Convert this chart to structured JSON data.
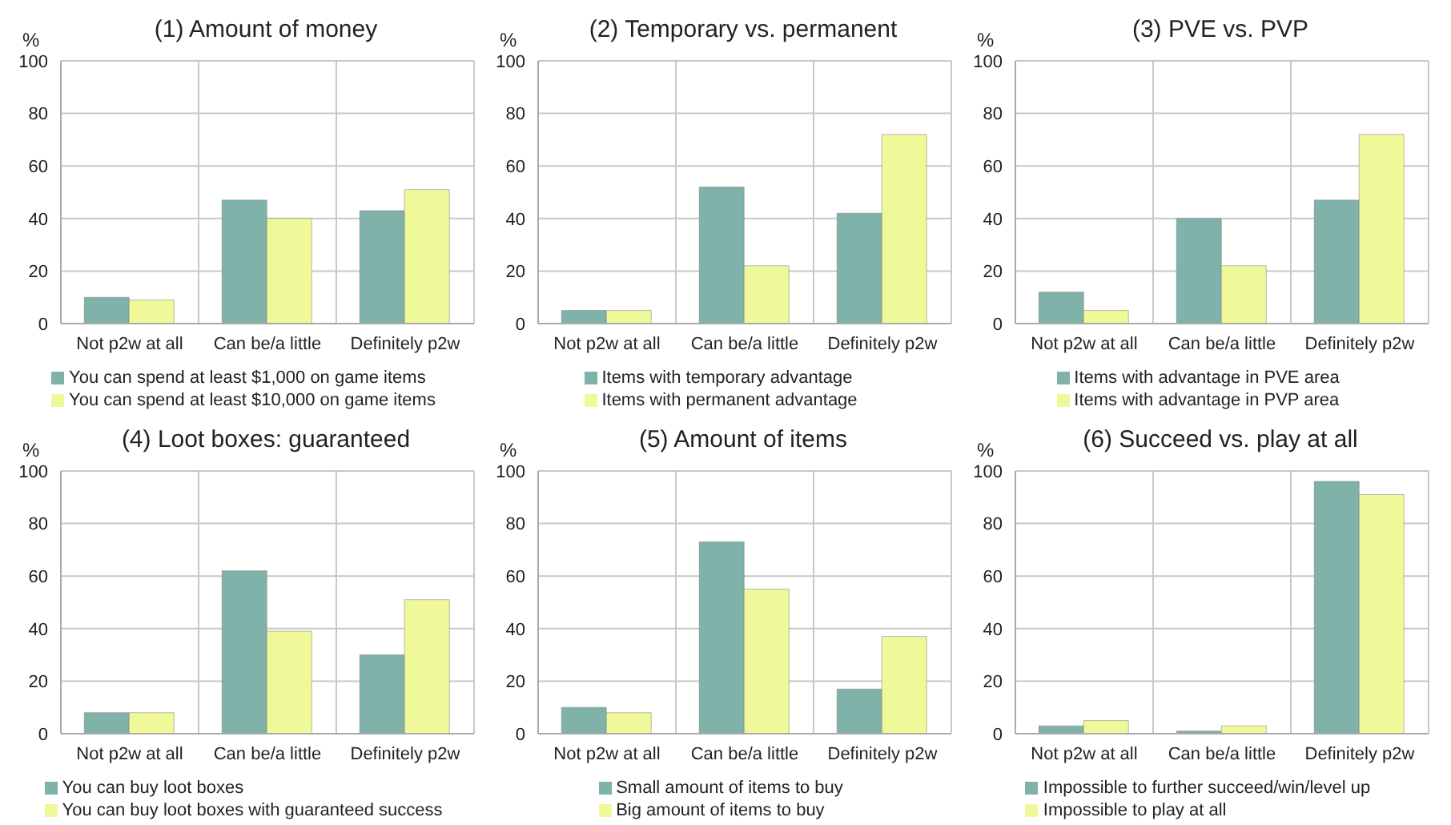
{
  "chart_data": [
    {
      "type": "bar",
      "title": "(1) Amount of money",
      "ylabel": "%",
      "categories": [
        "Not p2w at all",
        "Can be/a little",
        "Definitely p2w"
      ],
      "series": [
        {
          "name": "You can spend at least $1,000 on game items",
          "color": "#7fb2a8",
          "values": [
            10,
            47,
            43
          ]
        },
        {
          "name": "You can spend at least $10,000 on game items",
          "color": "#f0f99a",
          "values": [
            9,
            40,
            51
          ]
        }
      ],
      "ylim": [
        0,
        100
      ],
      "yticks": [
        0,
        20,
        40,
        60,
        80,
        100
      ],
      "grid": true,
      "legend": "bottom"
    },
    {
      "type": "bar",
      "title": "(2) Temporary vs. permanent",
      "ylabel": "%",
      "categories": [
        "Not p2w at all",
        "Can be/a little",
        "Definitely p2w"
      ],
      "series": [
        {
          "name": "Items with temporary advantage",
          "color": "#7fb2a8",
          "values": [
            5,
            52,
            42
          ]
        },
        {
          "name": "Items with permanent advantage",
          "color": "#f0f99a",
          "values": [
            5,
            22,
            72
          ]
        }
      ],
      "ylim": [
        0,
        100
      ],
      "yticks": [
        0,
        20,
        40,
        60,
        80,
        100
      ],
      "grid": true,
      "legend": "bottom"
    },
    {
      "type": "bar",
      "title": "(3) PVE vs. PVP",
      "ylabel": "%",
      "categories": [
        "Not p2w at all",
        "Can be/a little",
        "Definitely p2w"
      ],
      "series": [
        {
          "name": "Items with advantage in PVE area",
          "color": "#7fb2a8",
          "values": [
            12,
            40,
            47
          ]
        },
        {
          "name": "Items with advantage in PVP area",
          "color": "#f0f99a",
          "values": [
            5,
            22,
            72
          ]
        }
      ],
      "ylim": [
        0,
        100
      ],
      "yticks": [
        0,
        20,
        40,
        60,
        80,
        100
      ],
      "grid": true,
      "legend": "bottom"
    },
    {
      "type": "bar",
      "title": "(4) Loot boxes: guaranteed",
      "ylabel": "%",
      "categories": [
        "Not p2w at all",
        "Can be/a little",
        "Definitely p2w"
      ],
      "series": [
        {
          "name": "You can buy loot boxes",
          "color": "#7fb2a8",
          "values": [
            8,
            62,
            30
          ]
        },
        {
          "name": "You can buy loot boxes with guaranteed success",
          "color": "#f0f99a",
          "values": [
            8,
            39,
            51
          ]
        }
      ],
      "ylim": [
        0,
        100
      ],
      "yticks": [
        0,
        20,
        40,
        60,
        80,
        100
      ],
      "grid": true,
      "legend": "bottom"
    },
    {
      "type": "bar",
      "title": "(5) Amount of items",
      "ylabel": "%",
      "categories": [
        "Not p2w at all",
        "Can be/a little",
        "Definitely p2w"
      ],
      "series": [
        {
          "name": "Small amount of items to buy",
          "color": "#7fb2a8",
          "values": [
            10,
            73,
            17
          ]
        },
        {
          "name": "Big amount of items to buy",
          "color": "#f0f99a",
          "values": [
            8,
            55,
            37
          ]
        }
      ],
      "ylim": [
        0,
        100
      ],
      "yticks": [
        0,
        20,
        40,
        60,
        80,
        100
      ],
      "grid": true,
      "legend": "bottom"
    },
    {
      "type": "bar",
      "title": "(6) Succeed vs. play at all",
      "ylabel": "%",
      "categories": [
        "Not p2w at all",
        "Can be/a little",
        "Definitely p2w"
      ],
      "series": [
        {
          "name": "Impossible to further succeed/win/level up",
          "color": "#7fb2a8",
          "values": [
            3,
            1,
            96
          ]
        },
        {
          "name": "Impossible to play at all",
          "color": "#f0f99a",
          "values": [
            5,
            3,
            91
          ]
        }
      ],
      "ylim": [
        0,
        100
      ],
      "yticks": [
        0,
        20,
        40,
        60,
        80,
        100
      ],
      "grid": true,
      "legend": "bottom"
    }
  ]
}
